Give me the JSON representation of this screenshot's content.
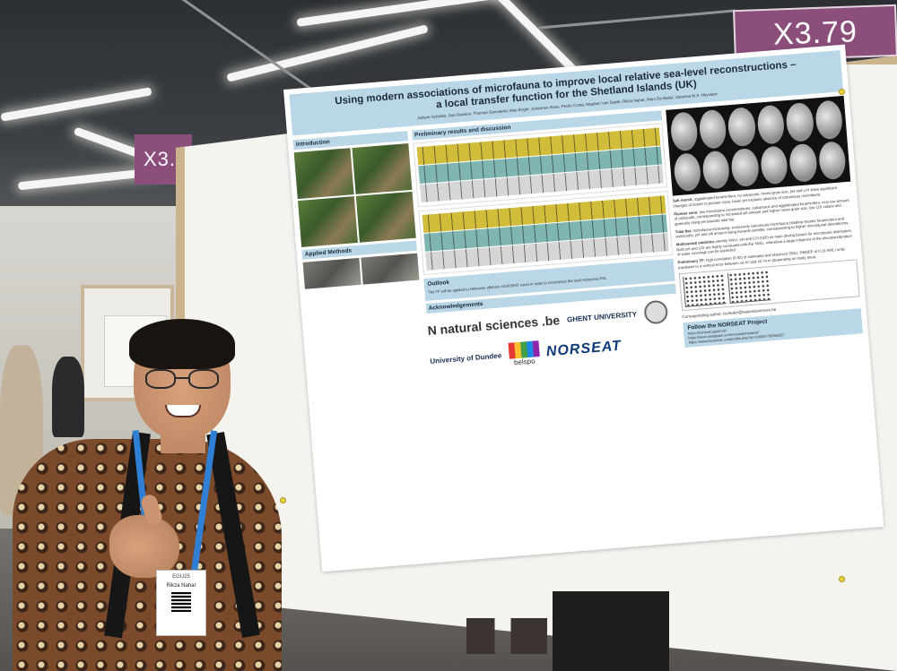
{
  "signs": {
    "main": "X3.79",
    "left": "X3."
  },
  "poster": {
    "title_line1": "Using modern associations of microfauna to improve local relative sea-level reconstructions –",
    "title_line2": "a local transfer function for the Shetland Islands (UK)",
    "authors": "Juliane Scheder, Sue Dawson, Thomas Goovaerts, Max Engel, Johannes Alves, Pedro Costa, Maarten Van Daele, Rikza Nahar, Marc De Batist, Vanessa M.A. Heyvaert",
    "sections": {
      "introduction": "Introduction",
      "applied_methods": "Applied Methods",
      "results": "Preliminary results and discussion",
      "outlook": "Outlook",
      "acknowledgements": "Acknowledgements"
    },
    "findings": {
      "salt_marsh_label": "Salt marsh:",
      "salt_marsh": "agglutinated foraminifera, no ostracods, mixed grain size, pH and LOI show significant changes at border to pioneer zone, lower pH explains absence of calcareous microfauna.",
      "pioneer_label": "Pioneer zone:",
      "pioneer": "low microfauna concentrations, calcareous and agglutinated foraminifera, very low amount of ostracods, corresponding to increased silt amount and higher mean grain size, low LOI values and generally rising pH towards tidal flat.",
      "tidal_flat_label": "Tidal flat:",
      "tidal_flat": "microfauna increasing, exclusively calcareous microfauna (shallow-marine foraminifera and ostracods), pH and silt amount rising towards subtidal, corresponding to higher microfaunal abundances.",
      "multivariate_label": "Multivariate statistics",
      "multivariate": "identify SWLI, pH and LOI (550) as main driving factors for microfauna distribution. Both pH and LOI are highly correlated with the SWLI, wherefore a large influence of the elevation/duration of water coverage can be expected.",
      "tf_label": "Preliminary TF:",
      "tf": "high correlation (0.92) of estimated and observed SWLI, RMSEP of 0.15 SWLI units translates to a vertical error between ±0.47 and ±0.74 m (depending on study area)."
    },
    "outlook_text": "The TF will be applied to Holocene offshore NORSEAT cores in order to reconstruct the local Holocene RSL",
    "logos": [
      "N natural sciences .be",
      "GHENT UNIVERSITY",
      "University of Dundee",
      "belspo",
      "NORSEAT"
    ],
    "corresponding_author": "Corresponding author: jscheder@naturalsciences.be",
    "follow_title": "Follow the NORSEAT Project",
    "links": [
      "https://norseat.ugent.be/",
      "https://www.instagram.com/norseatshetland/",
      "https://www.facebook.com/profile.php?id=100087756906157"
    ]
  },
  "badge": {
    "event": "EGU25",
    "name": "Rikza Nahar"
  }
}
